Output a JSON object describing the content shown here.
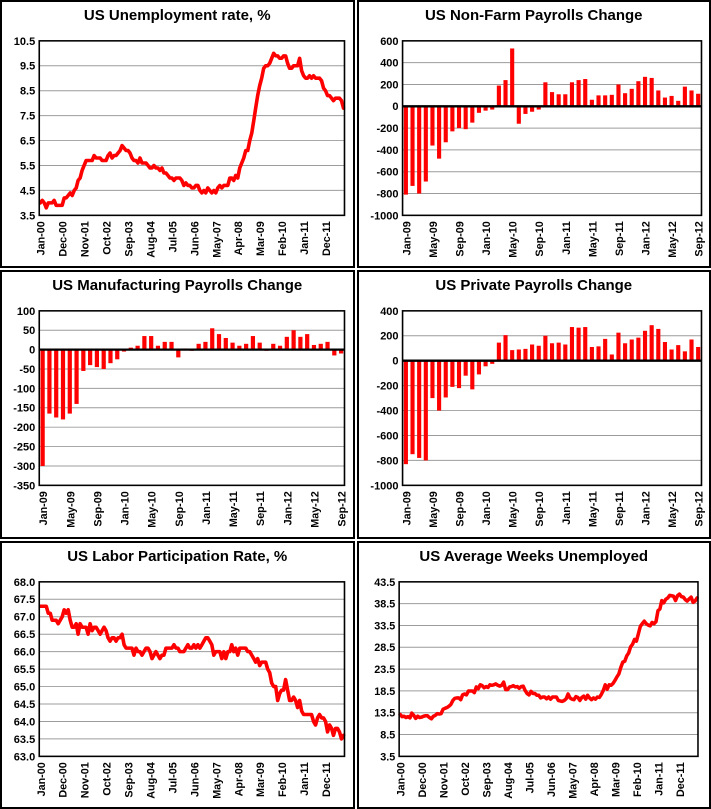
{
  "colors": {
    "series": "#FE0000",
    "grid": "#9C9C9C",
    "axis": "#000000",
    "background": "#FFFFFF",
    "text": "#000000"
  },
  "chart_data": [
    {
      "type": "line",
      "title": "US Unemployment rate, %",
      "xlabel": "",
      "ylabel": "",
      "legend": "none",
      "grid": true,
      "x_start": "Jan-00",
      "x_end": "Sep-12",
      "freq": "monthly",
      "x_tick_every": 11,
      "x_tick_labels": [
        "Jan-00",
        "Dec-00",
        "Nov-01",
        "Oct-02",
        "Sep-03",
        "Aug-04",
        "Jul-05",
        "Jun-06",
        "May-07",
        "Apr-08",
        "Mar-09",
        "Feb-10",
        "Jan-11",
        "Dec-11"
      ],
      "yticks": [
        10.5,
        9.5,
        8.5,
        7.5,
        6.5,
        5.5,
        4.5,
        3.5
      ],
      "y_tick_labels": [
        "10.5",
        "9.5",
        "8.5",
        "7.5",
        "6.5",
        "5.5",
        "4.5",
        "3.5"
      ],
      "ylim": [
        3.5,
        10.5
      ],
      "values": [
        4.0,
        4.1,
        4.0,
        3.8,
        4.0,
        4.0,
        4.0,
        4.1,
        3.9,
        3.9,
        3.9,
        3.9,
        4.2,
        4.2,
        4.3,
        4.4,
        4.3,
        4.5,
        4.6,
        4.9,
        5.0,
        5.3,
        5.5,
        5.7,
        5.7,
        5.7,
        5.7,
        5.9,
        5.8,
        5.8,
        5.8,
        5.7,
        5.7,
        5.7,
        5.9,
        6.0,
        5.8,
        5.9,
        5.9,
        6.0,
        6.1,
        6.3,
        6.2,
        6.1,
        6.1,
        6.0,
        5.8,
        5.7,
        5.7,
        5.6,
        5.8,
        5.6,
        5.6,
        5.6,
        5.5,
        5.4,
        5.4,
        5.5,
        5.4,
        5.4,
        5.3,
        5.4,
        5.2,
        5.2,
        5.1,
        5.0,
        5.0,
        4.9,
        5.0,
        5.0,
        5.0,
        4.9,
        4.7,
        4.8,
        4.7,
        4.7,
        4.6,
        4.6,
        4.7,
        4.7,
        4.5,
        4.4,
        4.5,
        4.4,
        4.6,
        4.5,
        4.4,
        4.5,
        4.4,
        4.6,
        4.7,
        4.6,
        4.7,
        4.7,
        4.7,
        5.0,
        5.0,
        4.9,
        5.1,
        5.0,
        5.4,
        5.6,
        5.8,
        6.1,
        6.1,
        6.5,
        6.8,
        7.3,
        7.8,
        8.3,
        8.7,
        9.0,
        9.4,
        9.5,
        9.5,
        9.6,
        9.8,
        10.0,
        9.9,
        9.9,
        9.8,
        9.8,
        9.9,
        9.9,
        9.6,
        9.4,
        9.4,
        9.5,
        9.5,
        9.5,
        9.8,
        9.3,
        9.1,
        9.0,
        9.0,
        9.1,
        9.0,
        9.1,
        9.0,
        9.0,
        9.0,
        8.9,
        8.6,
        8.5,
        8.3,
        8.3,
        8.2,
        8.1,
        8.2,
        8.2,
        8.2,
        8.1,
        7.8
      ]
    },
    {
      "type": "bar",
      "title": "US Non-Farm Payrolls Change",
      "xlabel": "",
      "ylabel": "",
      "legend": "none",
      "grid": true,
      "x_start": "Jan-09",
      "x_end": "Sep-12",
      "freq": "monthly",
      "x_tick_every": 4,
      "x_tick_labels": [
        "Jan-09",
        "May-09",
        "Sep-09",
        "Jan-10",
        "May-10",
        "Sep-10",
        "Jan-11",
        "May-11",
        "Sep-11",
        "Jan-12",
        "May-12",
        "Sep-12"
      ],
      "yticks": [
        600,
        400,
        200,
        0,
        -200,
        -400,
        -600,
        -800,
        -1000
      ],
      "y_tick_labels": [
        "600",
        "400",
        "200",
        "0",
        "-200",
        "-400",
        "-600",
        "-800",
        "-1000"
      ],
      "ylim": [
        -1000,
        600
      ],
      "values": [
        -810,
        -730,
        -800,
        -690,
        -360,
        -480,
        -330,
        -230,
        -200,
        -210,
        -150,
        -60,
        -40,
        -30,
        190,
        240,
        530,
        -160,
        -70,
        -50,
        -30,
        220,
        130,
        110,
        110,
        220,
        240,
        250,
        60,
        100,
        100,
        105,
        200,
        120,
        160,
        230,
        270,
        260,
        145,
        80,
        95,
        50,
        180,
        145,
        115
      ]
    },
    {
      "type": "bar",
      "title": "US Manufacturing Payrolls Change",
      "xlabel": "",
      "ylabel": "",
      "legend": "none",
      "grid": true,
      "x_start": "Jan-09",
      "x_end": "Sep-12",
      "freq": "monthly",
      "x_tick_every": 4,
      "x_tick_labels": [
        "Jan-09",
        "May-09",
        "Sep-09",
        "Jan-10",
        "May-10",
        "Sep-10",
        "Jan-11",
        "May-11",
        "Sep-11",
        "Jan-12",
        "May-12",
        "Sep-12"
      ],
      "yticks": [
        100,
        50,
        0,
        -50,
        -100,
        -150,
        -200,
        -250,
        -300,
        -350
      ],
      "y_tick_labels": [
        "100",
        "50",
        "0",
        "-50",
        "-100",
        "-150",
        "-200",
        "-250",
        "-300",
        "-350"
      ],
      "ylim": [
        -350,
        100
      ],
      "values": [
        -300,
        -165,
        -175,
        -180,
        -165,
        -140,
        -55,
        -40,
        -45,
        -50,
        -35,
        -25,
        -5,
        5,
        10,
        35,
        35,
        10,
        20,
        20,
        -20,
        3,
        -3,
        15,
        20,
        55,
        40,
        30,
        18,
        10,
        15,
        35,
        18,
        -3,
        15,
        10,
        33,
        50,
        33,
        40,
        12,
        15,
        20,
        -15,
        -10
      ]
    },
    {
      "type": "bar",
      "title": "US Private Payrolls Change",
      "xlabel": "",
      "ylabel": "",
      "legend": "none",
      "grid": true,
      "x_start": "Jan-09",
      "x_end": "Sep-12",
      "freq": "monthly",
      "x_tick_every": 4,
      "x_tick_labels": [
        "Jan-09",
        "May-09",
        "Sep-09",
        "Jan-10",
        "May-10",
        "Sep-10",
        "Jan-11",
        "May-11",
        "Sep-11",
        "Jan-12",
        "May-12",
        "Sep-12"
      ],
      "yticks": [
        400,
        200,
        0,
        -200,
        -400,
        -600,
        -800,
        -1000
      ],
      "y_tick_labels": [
        "400",
        "200",
        "0",
        "-200",
        "-400",
        "-600",
        "-800",
        "-1000"
      ],
      "ylim": [
        -1000,
        400
      ],
      "values": [
        -830,
        -750,
        -780,
        -800,
        -300,
        -400,
        -295,
        -210,
        -220,
        -120,
        -230,
        -110,
        -45,
        -25,
        145,
        205,
        85,
        90,
        95,
        130,
        120,
        200,
        140,
        145,
        130,
        270,
        265,
        270,
        110,
        115,
        175,
        50,
        225,
        140,
        170,
        185,
        240,
        285,
        255,
        150,
        90,
        125,
        75,
        170,
        110
      ]
    },
    {
      "type": "line",
      "title": "US Labor Participation Rate, %",
      "xlabel": "",
      "ylabel": "",
      "legend": "none",
      "grid": true,
      "x_start": "Jan-00",
      "x_end": "Sep-12",
      "freq": "monthly",
      "x_tick_every": 11,
      "x_tick_labels": [
        "Jan-00",
        "Dec-00",
        "Nov-01",
        "Oct-02",
        "Sep-03",
        "Aug-04",
        "Jul-05",
        "Jun-06",
        "May-07",
        "Apr-08",
        "Mar-09",
        "Feb-10",
        "Jan-11",
        "Dec-11"
      ],
      "yticks": [
        68.0,
        67.5,
        67.0,
        66.5,
        66.0,
        65.5,
        65.0,
        64.5,
        64.0,
        63.5,
        63.0
      ],
      "y_tick_labels": [
        "68.0",
        "67.5",
        "67.0",
        "66.5",
        "66.0",
        "65.5",
        "65.0",
        "64.5",
        "64.0",
        "63.5",
        "63.0"
      ],
      "ylim": [
        63.0,
        68.0
      ],
      "values": [
        67.3,
        67.3,
        67.3,
        67.3,
        67.1,
        67.1,
        66.9,
        66.9,
        66.9,
        66.8,
        66.9,
        67.0,
        67.2,
        67.1,
        67.2,
        66.9,
        66.7,
        66.7,
        66.8,
        66.5,
        66.8,
        66.7,
        66.7,
        66.7,
        66.5,
        66.8,
        66.6,
        66.7,
        66.7,
        66.6,
        66.5,
        66.6,
        66.7,
        66.6,
        66.4,
        66.3,
        66.4,
        66.4,
        66.3,
        66.4,
        66.4,
        66.5,
        66.2,
        66.1,
        66.1,
        66.1,
        66.1,
        65.9,
        66.1,
        66.0,
        66.0,
        65.9,
        66.0,
        66.1,
        66.1,
        66.0,
        65.8,
        65.9,
        66.0,
        65.9,
        65.8,
        65.9,
        65.9,
        66.1,
        66.1,
        66.1,
        66.1,
        66.2,
        66.1,
        66.1,
        66.0,
        66.0,
        66.0,
        66.1,
        66.2,
        66.1,
        66.1,
        66.2,
        66.1,
        66.2,
        66.1,
        66.2,
        66.3,
        66.4,
        66.4,
        66.3,
        66.2,
        65.9,
        66.0,
        66.0,
        66.0,
        65.8,
        66.0,
        65.8,
        66.0,
        66.0,
        66.2,
        66.0,
        66.1,
        65.9,
        66.1,
        66.1,
        66.1,
        66.1,
        66.0,
        66.0,
        65.9,
        65.8,
        65.7,
        65.8,
        65.6,
        65.7,
        65.7,
        65.7,
        65.5,
        65.4,
        65.1,
        65.0,
        65.0,
        64.6,
        64.8,
        64.9,
        64.9,
        65.2,
        64.9,
        64.6,
        64.6,
        64.7,
        64.6,
        64.4,
        64.6,
        64.3,
        64.2,
        64.2,
        64.2,
        64.2,
        64.2,
        64.0,
        63.9,
        64.1,
        64.2,
        64.1,
        64.1,
        64.0,
        63.7,
        63.9,
        63.8,
        63.6,
        63.8,
        63.8,
        63.7,
        63.5,
        63.6
      ]
    },
    {
      "type": "line",
      "title": "US Average Weeks Unemployed",
      "xlabel": "",
      "ylabel": "",
      "legend": "none",
      "grid": true,
      "x_start": "Jan-00",
      "x_end": "Sep-12",
      "freq": "monthly",
      "x_tick_every": 11,
      "x_tick_labels": [
        "Jan-00",
        "Dec-00",
        "Nov-01",
        "Oct-02",
        "Sep-03",
        "Aug-04",
        "Jul-05",
        "Jun-06",
        "May-07",
        "Apr-08",
        "Mar-09",
        "Feb-10",
        "Jan-11",
        "Dec-11"
      ],
      "yticks": [
        43.5,
        38.5,
        33.5,
        28.5,
        23.5,
        18.5,
        13.5,
        8.5,
        3.5
      ],
      "y_tick_labels": [
        "43.5",
        "38.5",
        "33.5",
        "28.5",
        "23.5",
        "18.5",
        "13.5",
        "8.5",
        "3.5"
      ],
      "ylim": [
        3.5,
        43.5
      ],
      "values": [
        13.1,
        12.6,
        12.7,
        12.4,
        12.6,
        12.3,
        13.4,
        12.9,
        12.2,
        12.7,
        12.4,
        12.5,
        12.7,
        12.8,
        12.8,
        12.4,
        12.1,
        12.7,
        12.9,
        13.3,
        13.2,
        13.3,
        14.3,
        14.5,
        14.7,
        15.0,
        15.4,
        16.3,
        16.8,
        16.9,
        16.9,
        16.5,
        17.6,
        17.8,
        17.6,
        18.5,
        18.5,
        18.5,
        18.1,
        19.4,
        19.0,
        19.9,
        19.7,
        19.2,
        19.5,
        19.3,
        19.9,
        19.8,
        19.9,
        20.1,
        19.8,
        19.6,
        19.8,
        20.5,
        18.8,
        18.8,
        19.4,
        19.5,
        19.7,
        19.4,
        19.5,
        19.1,
        19.5,
        19.6,
        18.6,
        17.9,
        17.6,
        18.4,
        17.9,
        17.9,
        17.5,
        17.5,
        16.9,
        17.1,
        17.1,
        16.7,
        17.1,
        16.6,
        17.1,
        17.1,
        17.1,
        16.3,
        16.2,
        16.1,
        16.3,
        16.7,
        17.8,
        16.9,
        16.6,
        16.5,
        17.2,
        17.0,
        16.3,
        17.0,
        17.3,
        16.6,
        17.5,
        16.9,
        16.5,
        16.9,
        16.6,
        17.1,
        17.0,
        17.7,
        18.6,
        19.9,
        18.9,
        19.9,
        19.8,
        20.2,
        20.9,
        21.7,
        22.4,
        23.9,
        25.1,
        25.3,
        26.5,
        27.2,
        28.6,
        29.2,
        30.3,
        29.9,
        31.6,
        33.3,
        33.9,
        34.5,
        33.9,
        33.6,
        33.4,
        34.2,
        33.9,
        34.4,
        36.9,
        37.3,
        39.2,
        38.7,
        39.5,
        39.8,
        40.4,
        40.3,
        40.2,
        39.2,
        40.3,
        40.7,
        40.1,
        40.0,
        39.4,
        39.1,
        39.6,
        40.0,
        38.8,
        39.1,
        39.8
      ]
    }
  ]
}
